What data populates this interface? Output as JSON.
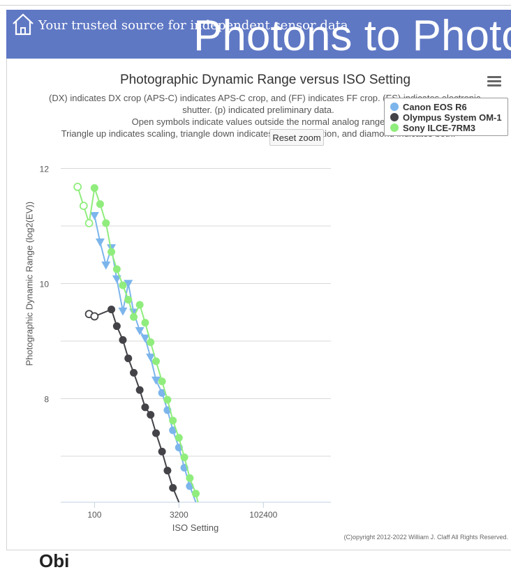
{
  "header": {
    "tagline": "Your trusted source for independent sensor data",
    "site_title": "Photons to Photo",
    "banner_color": "#5f78c4"
  },
  "chart_data": {
    "type": "line",
    "title": "Photographic Dynamic Range versus ISO Setting",
    "subtitle_lines": [
      "(DX) indicates DX crop (APS-C) indicates APS-C crop, and (FF) indicates FF crop. (ES) indicates electronic",
      "shutter. (p) indicated preliminary data.",
      "Open symbols indicate values outside the normal analog range",
      "Triangle up indicates scaling, triangle down indicates noise reduction, and diamond indicates both."
    ],
    "xlabel": "ISO Setting",
    "ylabel": "Photographic Dynamic Range (log2(EV))",
    "x_scale": "log2",
    "x_ticks": [
      100,
      3200,
      102400
    ],
    "y_ticks": [
      8,
      10,
      12
    ],
    "xlim": [
      25,
      1638400
    ],
    "ylim": [
      6.2,
      12.6
    ],
    "grid": true,
    "legend_position": "top-right",
    "series": [
      {
        "name": "Canon EOS R6",
        "color": "#7cb5ec",
        "points": [
          {
            "x": 100,
            "y": 11.18,
            "marker": "triangle-down"
          },
          {
            "x": 126,
            "y": 10.72,
            "marker": "triangle-down"
          },
          {
            "x": 160,
            "y": 10.32,
            "marker": "triangle-down"
          },
          {
            "x": 200,
            "y": 10.62,
            "marker": "triangle-down"
          },
          {
            "x": 250,
            "y": 10.08,
            "marker": "triangle-down"
          },
          {
            "x": 320,
            "y": 9.52,
            "marker": "triangle-down"
          },
          {
            "x": 400,
            "y": 10.0,
            "marker": "triangle-down"
          },
          {
            "x": 500,
            "y": 9.5,
            "marker": "triangle-down"
          },
          {
            "x": 640,
            "y": 9.18,
            "marker": "triangle-down"
          },
          {
            "x": 800,
            "y": 9.05,
            "marker": "triangle-down"
          },
          {
            "x": 1000,
            "y": 8.72,
            "marker": "triangle-down"
          },
          {
            "x": 1250,
            "y": 8.32,
            "marker": "triangle-down"
          },
          {
            "x": 1600,
            "y": 8.1,
            "marker": "circle"
          },
          {
            "x": 2000,
            "y": 7.8,
            "marker": "circle"
          },
          {
            "x": 2500,
            "y": 7.45,
            "marker": "circle"
          },
          {
            "x": 3200,
            "y": 7.15,
            "marker": "circle"
          },
          {
            "x": 4000,
            "y": 6.8,
            "marker": "circle"
          },
          {
            "x": 5000,
            "y": 6.48,
            "marker": "circle"
          },
          {
            "x": 6400,
            "y": 6.2,
            "marker": "none"
          }
        ]
      },
      {
        "name": "Olympus System OM-1",
        "color": "#434348",
        "points": [
          {
            "x": 80,
            "y": 9.47,
            "marker": "open-circle"
          },
          {
            "x": 100,
            "y": 9.43,
            "marker": "open-circle"
          },
          {
            "x": 200,
            "y": 9.55,
            "marker": "circle"
          },
          {
            "x": 250,
            "y": 9.26,
            "marker": "circle"
          },
          {
            "x": 320,
            "y": 9.02,
            "marker": "circle"
          },
          {
            "x": 400,
            "y": 8.7,
            "marker": "circle"
          },
          {
            "x": 500,
            "y": 8.45,
            "marker": "circle"
          },
          {
            "x": 640,
            "y": 8.15,
            "marker": "circle"
          },
          {
            "x": 800,
            "y": 7.85,
            "marker": "circle"
          },
          {
            "x": 1000,
            "y": 7.72,
            "marker": "circle"
          },
          {
            "x": 1250,
            "y": 7.4,
            "marker": "circle"
          },
          {
            "x": 1600,
            "y": 7.08,
            "marker": "circle"
          },
          {
            "x": 2000,
            "y": 6.75,
            "marker": "circle"
          },
          {
            "x": 2500,
            "y": 6.45,
            "marker": "circle"
          },
          {
            "x": 3200,
            "y": 6.2,
            "marker": "none"
          }
        ]
      },
      {
        "name": "Sony ILCE-7RM3",
        "color": "#90ed7d",
        "points": [
          {
            "x": 50,
            "y": 11.68,
            "marker": "open-circle"
          },
          {
            "x": 64,
            "y": 11.35,
            "marker": "open-circle"
          },
          {
            "x": 80,
            "y": 11.05,
            "marker": "open-circle"
          },
          {
            "x": 100,
            "y": 11.66,
            "marker": "circle"
          },
          {
            "x": 126,
            "y": 11.38,
            "marker": "circle"
          },
          {
            "x": 160,
            "y": 11.05,
            "marker": "circle"
          },
          {
            "x": 200,
            "y": 10.55,
            "marker": "circle"
          },
          {
            "x": 250,
            "y": 10.25,
            "marker": "circle"
          },
          {
            "x": 320,
            "y": 9.97,
            "marker": "circle"
          },
          {
            "x": 400,
            "y": 9.72,
            "marker": "circle"
          },
          {
            "x": 500,
            "y": 9.42,
            "marker": "circle"
          },
          {
            "x": 640,
            "y": 9.63,
            "marker": "circle"
          },
          {
            "x": 800,
            "y": 9.32,
            "marker": "circle"
          },
          {
            "x": 1000,
            "y": 8.98,
            "marker": "circle"
          },
          {
            "x": 1250,
            "y": 8.65,
            "marker": "circle"
          },
          {
            "x": 1600,
            "y": 8.3,
            "marker": "circle"
          },
          {
            "x": 2000,
            "y": 7.98,
            "marker": "circle"
          },
          {
            "x": 2500,
            "y": 7.62,
            "marker": "circle"
          },
          {
            "x": 3200,
            "y": 7.32,
            "marker": "circle"
          },
          {
            "x": 4000,
            "y": 6.98,
            "marker": "circle"
          },
          {
            "x": 5000,
            "y": 6.62,
            "marker": "circle"
          },
          {
            "x": 6400,
            "y": 6.35,
            "marker": "circle"
          },
          {
            "x": 7000,
            "y": 6.2,
            "marker": "none"
          }
        ]
      }
    ]
  },
  "controls": {
    "reset_zoom_label": "Reset zoom",
    "menu_icon": "hamburger-menu-icon"
  },
  "footer": {
    "copyright": "(C)opyright 2012-2022 William J. Claff All Rights Reserved.",
    "partial_text": "Obi"
  }
}
